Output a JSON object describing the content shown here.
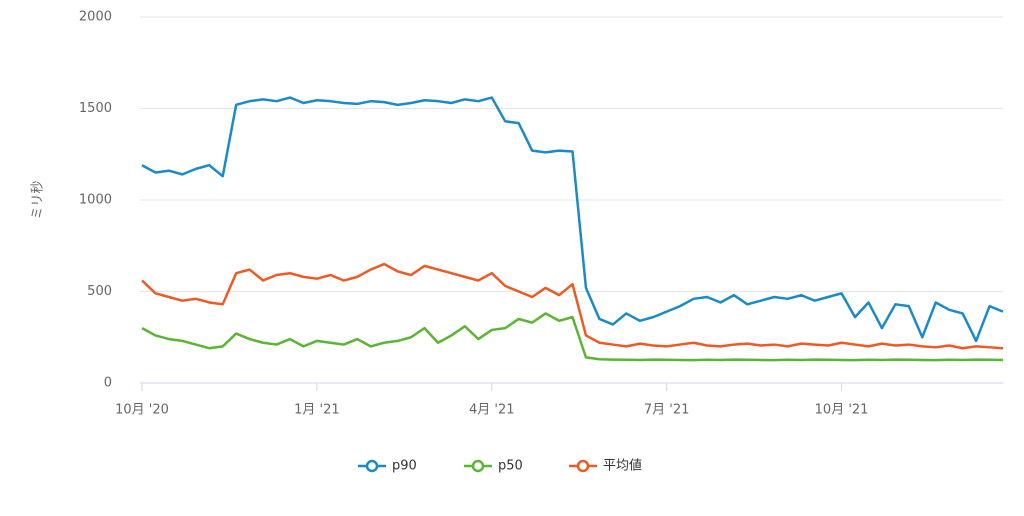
{
  "chart_data": {
    "type": "line",
    "y_label": "ミリ秒",
    "categories": [
      "10月 '20",
      null,
      null,
      null,
      null,
      null,
      null,
      null,
      null,
      null,
      null,
      null,
      null,
      "1月 '21",
      null,
      null,
      null,
      null,
      null,
      null,
      null,
      null,
      null,
      null,
      null,
      null,
      "4月 '21",
      null,
      null,
      null,
      null,
      null,
      null,
      null,
      null,
      null,
      null,
      null,
      null,
      "7月 '21",
      null,
      null,
      null,
      null,
      null,
      null,
      null,
      null,
      null,
      null,
      null,
      null,
      "10月 '21",
      null,
      null,
      null,
      null,
      null,
      null,
      null,
      null,
      null,
      null,
      null,
      null
    ],
    "series": [
      {
        "name": "p90",
        "color": "#1b8ac6",
        "values": [
          1190,
          1150,
          1160,
          1140,
          1170,
          1190,
          1130,
          1520,
          1540,
          1550,
          1540,
          1560,
          1530,
          1545,
          1540,
          1530,
          1525,
          1540,
          1535,
          1520,
          1530,
          1545,
          1540,
          1530,
          1550,
          1540,
          1560,
          1430,
          1420,
          1270,
          1260,
          1270,
          1265,
          520,
          350,
          320,
          380,
          340,
          360,
          390,
          420,
          460,
          470,
          440,
          480,
          430,
          450,
          470,
          460,
          480,
          450,
          470,
          490,
          360,
          440,
          300,
          430,
          420,
          250,
          440,
          400,
          380,
          230,
          420,
          390
        ]
      },
      {
        "name": "p50",
        "color": "#5bb432",
        "values": [
          300,
          260,
          240,
          230,
          210,
          190,
          200,
          270,
          240,
          220,
          210,
          240,
          200,
          230,
          220,
          210,
          240,
          200,
          220,
          230,
          250,
          300,
          220,
          260,
          310,
          240,
          290,
          300,
          350,
          330,
          380,
          340,
          360,
          140,
          130,
          128,
          127,
          126,
          128,
          127,
          126,
          125,
          127,
          126,
          128,
          127,
          126,
          125,
          127,
          126,
          128,
          127,
          126,
          125,
          127,
          126,
          128,
          127,
          126,
          125,
          127,
          126,
          128,
          127,
          126
        ]
      },
      {
        "name": "平均値",
        "color": "#ee5a24",
        "values": [
          560,
          490,
          470,
          450,
          460,
          440,
          430,
          600,
          620,
          560,
          590,
          600,
          580,
          570,
          590,
          560,
          580,
          620,
          650,
          610,
          590,
          640,
          620,
          600,
          580,
          560,
          600,
          530,
          500,
          470,
          520,
          480,
          540,
          260,
          220,
          210,
          200,
          215,
          205,
          200,
          210,
          220,
          205,
          200,
          210,
          215,
          205,
          210,
          200,
          215,
          210,
          205,
          220,
          210,
          200,
          215,
          205,
          210,
          200,
          195,
          205,
          190,
          200,
          195,
          190
        ]
      }
    ],
    "ylim": [
      0,
      2000
    ],
    "yticks": [
      0,
      500,
      1000,
      1500,
      2000
    ],
    "grid": true,
    "legend": "bottom"
  }
}
